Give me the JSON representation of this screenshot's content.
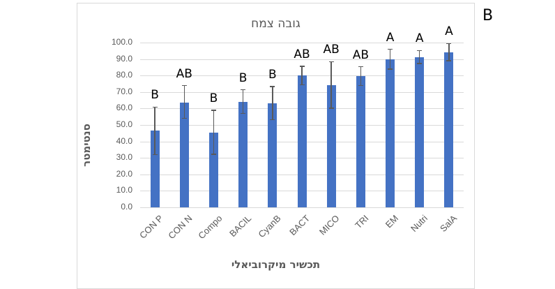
{
  "panel_label": "B",
  "chart_data": {
    "type": "bar",
    "title": "גובה צמח",
    "xlabel": "תכשיר מיקרוביאלי",
    "ylabel": "סנטימטר",
    "ylim": [
      0,
      100
    ],
    "yticks": [
      "0.0",
      "10.0",
      "20.0",
      "30.0",
      "40.0",
      "50.0",
      "60.0",
      "70.0",
      "80.0",
      "90.0",
      "100.0"
    ],
    "grid": true,
    "legend": null,
    "bar_color": "#4472c4",
    "categories": [
      "CON P",
      "CON N",
      "Compo",
      "BACIL",
      "CyanB",
      "BACT",
      "MICO",
      "TRI",
      "EM",
      "Nutri",
      "SalA"
    ],
    "values": [
      46.5,
      63.7,
      45.3,
      64.1,
      63.1,
      80.0,
      74.0,
      79.5,
      89.8,
      91.1,
      94.1
    ],
    "error_upper": [
      60.9,
      73.9,
      59.0,
      71.3,
      73.3,
      85.6,
      88.4,
      85.3,
      95.9,
      95.2,
      99.4
    ],
    "error_lower": [
      31.9,
      54.1,
      32.3,
      56.9,
      53.1,
      74.3,
      60.2,
      73.9,
      83.9,
      87.2,
      89.0
    ],
    "significance_labels": [
      "B",
      "AB",
      "B",
      "B",
      "B",
      "AB",
      "AB",
      "AB",
      "A",
      "A",
      "A"
    ]
  }
}
